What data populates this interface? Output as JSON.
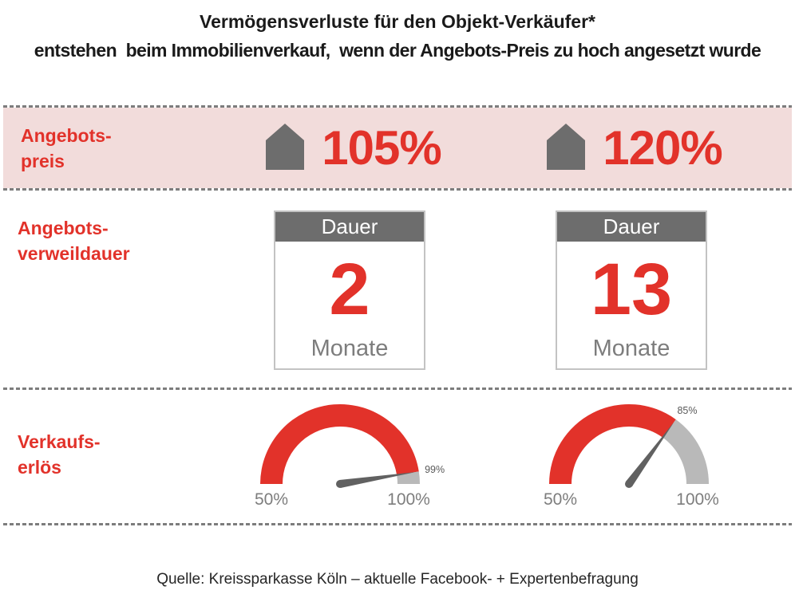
{
  "title": {
    "line1": "Vermögensverluste für den Objekt-Verkäufer*",
    "line2": "entstehen  beim Immobilienverkauf,  wenn der Angebots-Preis zu hoch angesetzt wurde"
  },
  "rows": {
    "price": {
      "label": [
        "Angebots-",
        "preis"
      ],
      "values": [
        "105%",
        "120%"
      ],
      "icon": "house-icon"
    },
    "duration": {
      "label": [
        "Angebots-",
        "verweildauer"
      ],
      "box_header": "Dauer",
      "unit": "Monate",
      "values": [
        "2",
        "13"
      ]
    },
    "proceeds": {
      "label": [
        "Verkaufs-",
        "erlös"
      ]
    }
  },
  "chart_data": [
    {
      "type": "gauge",
      "metric": "Verkaufserlös",
      "scenario": "Angebotspreis 105%",
      "min_pct": 50,
      "max_pct": 100,
      "value_pct": 99,
      "value_label": "99%",
      "tick_labels": [
        "50%",
        "100%"
      ],
      "filled_color": "#e2322a",
      "rest_color": "#b9b9b9",
      "needle_color": "#616161"
    },
    {
      "type": "gauge",
      "metric": "Verkaufserlös",
      "scenario": "Angebotspreis 120%",
      "min_pct": 50,
      "max_pct": 100,
      "value_pct": 85,
      "value_label": "85%",
      "tick_labels": [
        "50%",
        "100%"
      ],
      "filled_color": "#e2322a",
      "rest_color": "#b9b9b9",
      "needle_color": "#616161"
    }
  ],
  "footer": {
    "source": "Quelle: Kreissparkasse Köln – aktuelle Facebook- + Expertenbefragung"
  },
  "colors": {
    "accent_red": "#e2322a",
    "band_pink": "#f2dcdb",
    "icon_grey": "#6d6d6d",
    "gauge_rest_grey": "#b9b9b9",
    "label_grey": "#7d7d7d"
  }
}
